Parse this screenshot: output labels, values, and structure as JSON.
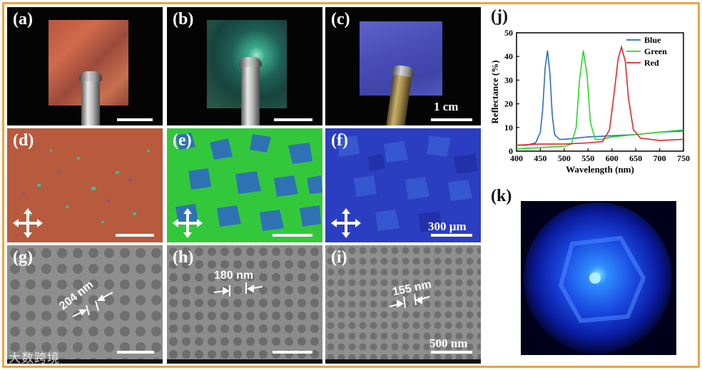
{
  "panels": {
    "a": "(a)",
    "b": "(b)",
    "c": "(c)",
    "d": "(d)",
    "e": "(e)",
    "f": "(f)",
    "g": "(g)",
    "h": "(h)",
    "i": "(i)",
    "j": "(j)",
    "k": "(k)"
  },
  "scalebars": {
    "photo": "1 cm",
    "pom": "300 µm",
    "sem": "500 nm"
  },
  "periods": {
    "g": "204 nm",
    "h": "180 nm",
    "i": "155 nm"
  },
  "watermark": "大数跨境",
  "colors": {
    "frame": "#f0a23c",
    "blue": "#2b6cc4",
    "green": "#2ad62a",
    "red": "#e0262a"
  },
  "chart_data": {
    "type": "line",
    "xlabel": "Wavelength (nm)",
    "ylabel": "Reflectance (%)",
    "xlim": [
      400,
      750
    ],
    "ylim": [
      0,
      50
    ],
    "xticks": [
      400,
      450,
      500,
      550,
      600,
      650,
      700,
      750
    ],
    "yticks": [
      0,
      10,
      20,
      30,
      40,
      50
    ],
    "legend_position": "top-right",
    "series": [
      {
        "name": "Blue",
        "color": "#2b6cc4",
        "x": [
          400,
          420,
          440,
          450,
          455,
          460,
          465,
          470,
          475,
          480,
          490,
          500,
          550,
          600,
          650,
          700,
          750
        ],
        "y": [
          2.5,
          2.5,
          3.5,
          8,
          18,
          35,
          42.5,
          33,
          15,
          7,
          5,
          5,
          6,
          6.5,
          7,
          8,
          8.5
        ]
      },
      {
        "name": "Green",
        "color": "#2ad62a",
        "x": [
          400,
          450,
          500,
          515,
          525,
          532,
          540,
          548,
          555,
          565,
          580,
          600,
          650,
          700,
          750
        ],
        "y": [
          1,
          1.5,
          2,
          3,
          10,
          30,
          42.5,
          32,
          12,
          5,
          5,
          6,
          7,
          8,
          9
        ]
      },
      {
        "name": "Red",
        "color": "#e0262a",
        "x": [
          400,
          450,
          500,
          550,
          580,
          595,
          605,
          613,
          620,
          628,
          635,
          645,
          660,
          700,
          750
        ],
        "y": [
          2.5,
          3,
          3,
          3.5,
          4,
          9,
          25,
          39,
          44,
          38,
          22,
          9,
          5.5,
          4.5,
          5
        ]
      }
    ]
  }
}
